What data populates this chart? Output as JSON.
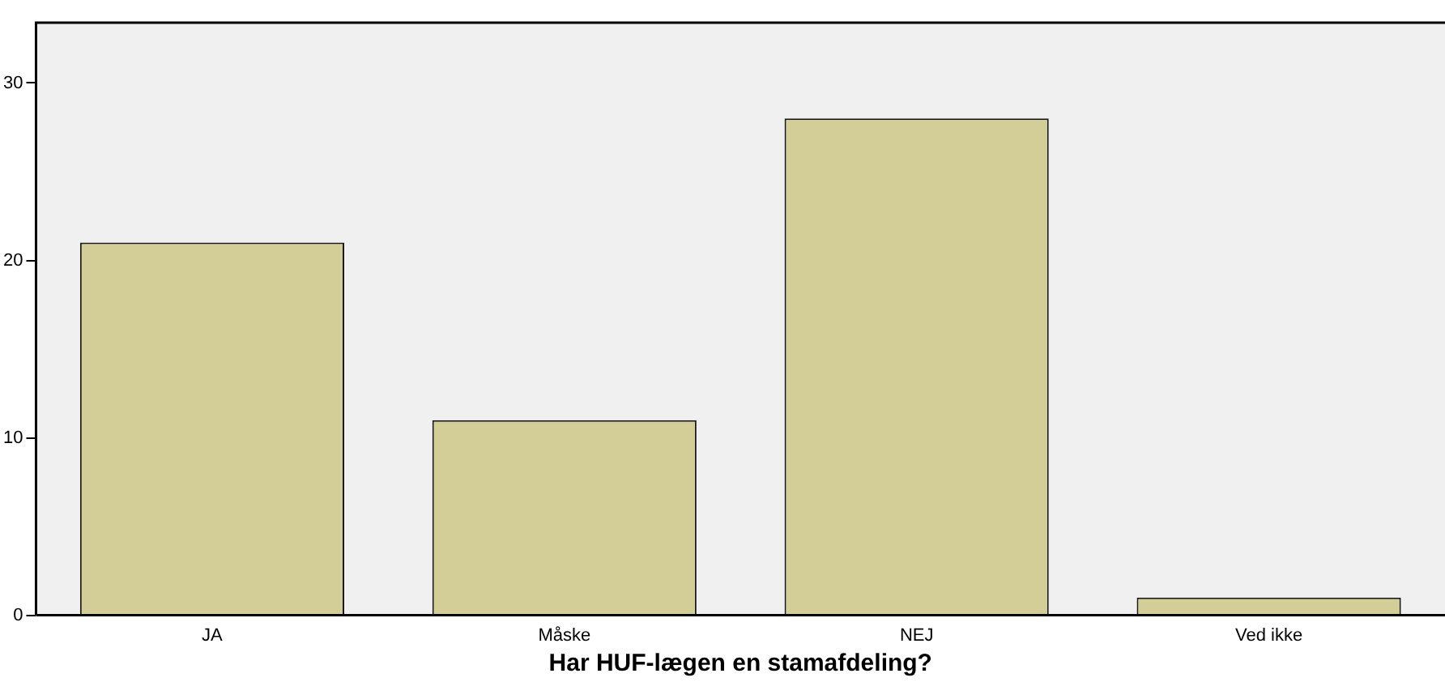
{
  "chart_data": {
    "type": "bar",
    "xlabel": "Har HUF-lægen en stamafdeling?",
    "categories": [
      "JA",
      "Måske",
      "NEJ",
      "Ved ikke"
    ],
    "values": [
      21,
      11,
      28,
      1
    ],
    "color": "#d3ce98",
    "ylim": [
      0,
      33.4
    ],
    "yticks": [
      0,
      10,
      20,
      30
    ],
    "grid": false,
    "legend": false
  }
}
